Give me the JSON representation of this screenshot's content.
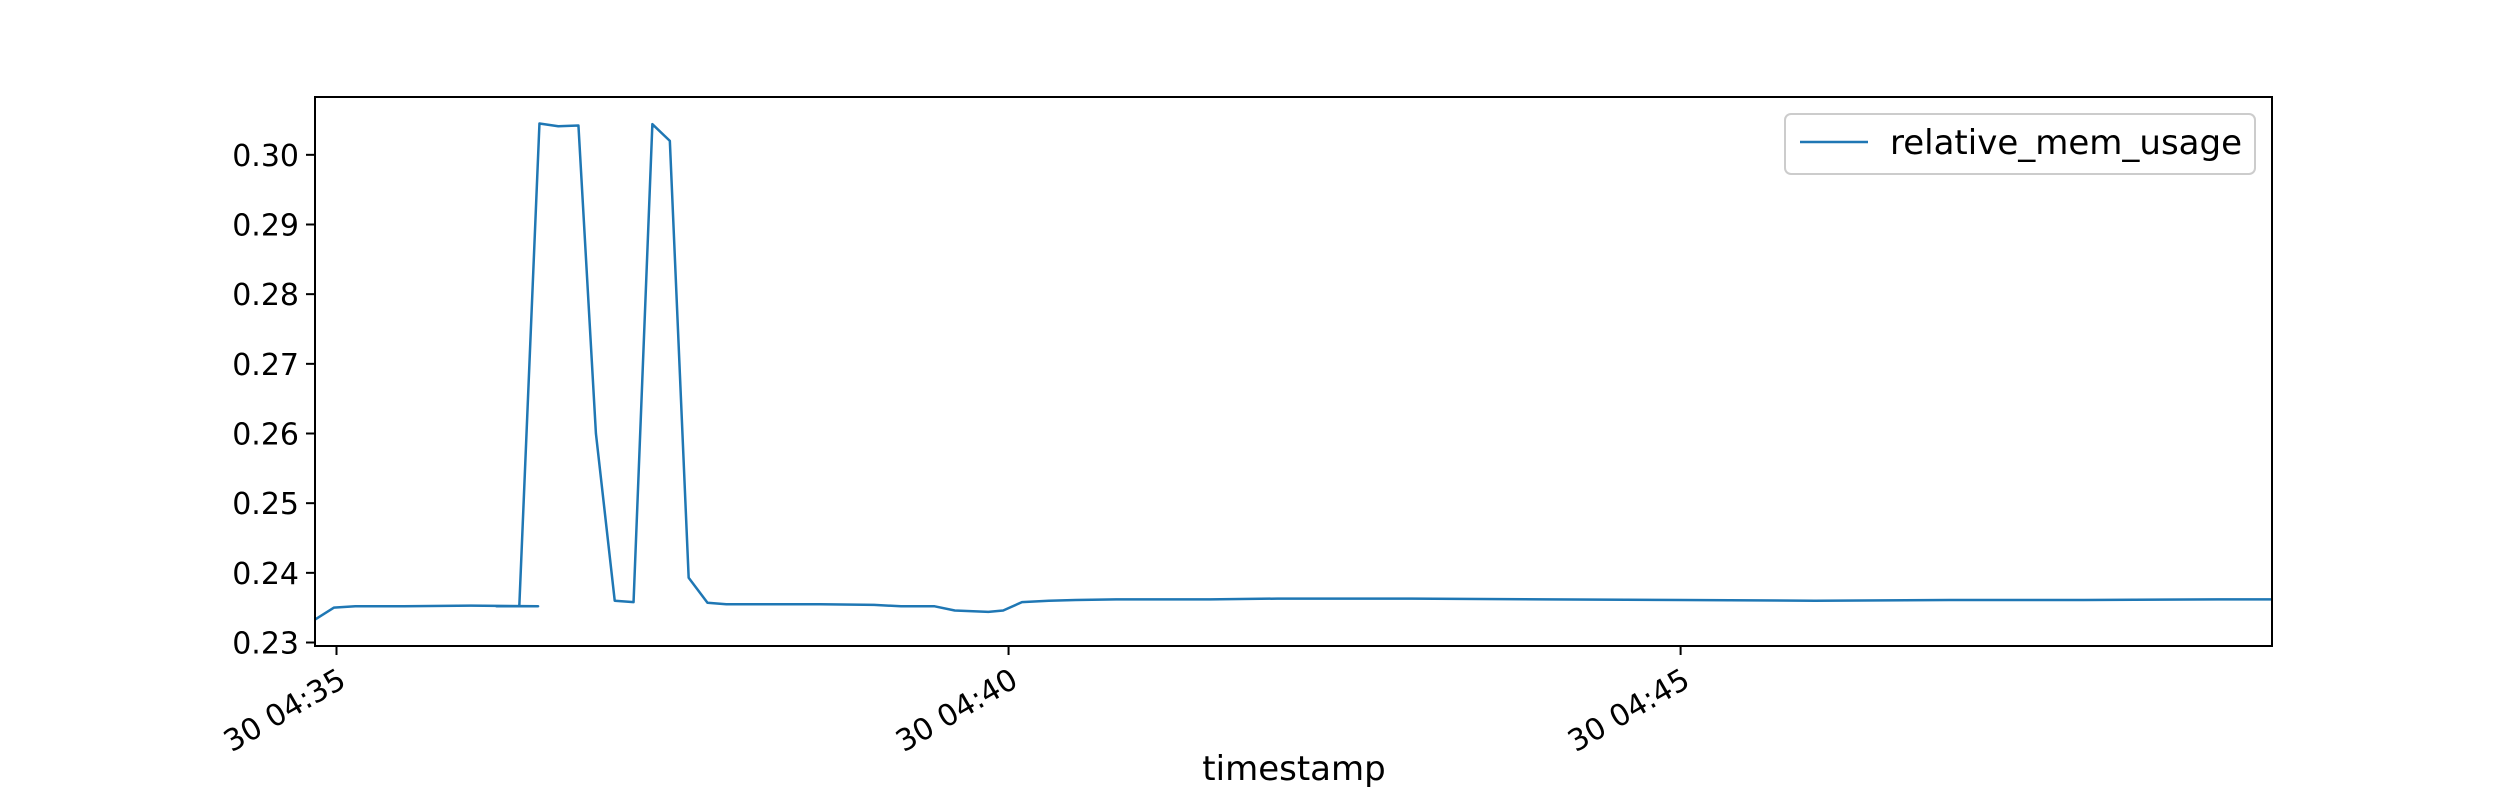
{
  "chart_data": {
    "type": "line",
    "title": "",
    "xlabel": "timestamp",
    "ylabel": "",
    "x_unit": "minutes after 04:35 (day 30)",
    "xlim": [
      -0.16,
      14.4
    ],
    "ylim": [
      0.2295,
      0.3083
    ],
    "x_ticks": [
      {
        "value": 0,
        "label": "30 04:35"
      },
      {
        "value": 5,
        "label": "30 04:40"
      },
      {
        "value": 10,
        "label": "30 04:45"
      }
    ],
    "y_ticks": [
      {
        "value": 0.23,
        "label": "0.23"
      },
      {
        "value": 0.24,
        "label": "0.24"
      },
      {
        "value": 0.25,
        "label": "0.25"
      },
      {
        "value": 0.26,
        "label": "0.26"
      },
      {
        "value": 0.27,
        "label": "0.27"
      },
      {
        "value": 0.28,
        "label": "0.28"
      },
      {
        "value": 0.29,
        "label": "0.29"
      },
      {
        "value": 0.3,
        "label": "0.30"
      }
    ],
    "grid": false,
    "legend_position": "top-right",
    "series": [
      {
        "name": "relative_mem_usage",
        "color": "#1f77b4",
        "points": [
          [
            -0.16,
            0.2333
          ],
          [
            -0.02,
            0.235
          ],
          [
            0.14,
            0.2352
          ],
          [
            0.5,
            0.2352
          ],
          [
            1.0,
            0.2353
          ],
          [
            1.5,
            0.2352
          ],
          [
            1.19,
            0.2352
          ],
          [
            1.36,
            0.2352
          ],
          [
            1.51,
            0.3045
          ],
          [
            1.65,
            0.3041
          ],
          [
            1.8,
            0.3042
          ],
          [
            1.93,
            0.26
          ],
          [
            2.07,
            0.236
          ],
          [
            2.21,
            0.2358
          ],
          [
            2.35,
            0.3044
          ],
          [
            2.48,
            0.302
          ],
          [
            2.62,
            0.2393
          ],
          [
            2.76,
            0.2357
          ],
          [
            2.9,
            0.2355
          ],
          [
            3.2,
            0.2355
          ],
          [
            3.6,
            0.2355
          ],
          [
            4.0,
            0.2354
          ],
          [
            4.2,
            0.2352
          ],
          [
            4.45,
            0.2352
          ],
          [
            4.6,
            0.2346
          ],
          [
            4.85,
            0.2344
          ],
          [
            4.96,
            0.2346
          ],
          [
            5.1,
            0.2358
          ],
          [
            5.3,
            0.236
          ],
          [
            5.5,
            0.2361
          ],
          [
            5.8,
            0.2362
          ],
          [
            6.5,
            0.2362
          ],
          [
            7.0,
            0.2363
          ],
          [
            8.0,
            0.2363
          ],
          [
            9.0,
            0.2362
          ],
          [
            10.0,
            0.2361
          ],
          [
            11.0,
            0.236
          ],
          [
            12.0,
            0.2361
          ],
          [
            13.0,
            0.2361
          ],
          [
            14.0,
            0.2362
          ],
          [
            14.4,
            0.2362
          ]
        ]
      }
    ]
  }
}
